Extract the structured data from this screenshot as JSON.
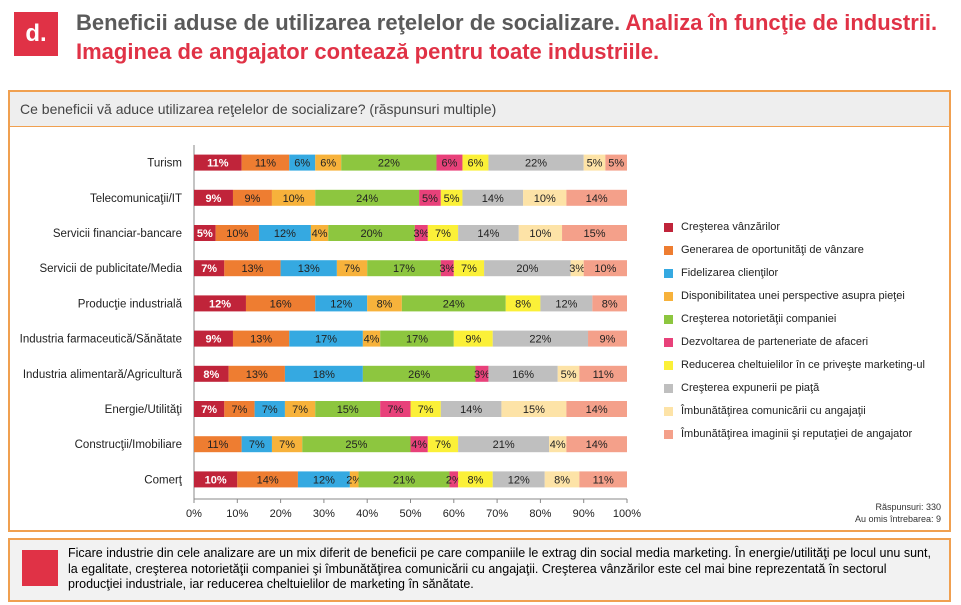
{
  "header": {
    "badge": "d.",
    "title_part1": "Beneficii aduse de utilizarea reţelelor de socializare.",
    "title_part2": "Analiza în funcţie de industrii. Imaginea de angajator contează pentru toate industriile."
  },
  "question": "Ce beneficii vă aduce utilizarea reţelelor de socializare? (răspunsuri multiple)",
  "notes": {
    "responses": "Răspunsuri: 330",
    "omitted": "Au omis întrebarea: 9"
  },
  "summary": "Ficare industrie din cele analizare are un mix diferit de beneficii pe care companiile le extrag din social media marketing. În energie/utilităţi pe locul unu sunt, la egalitate, creşterea notorietăţii companiei şi îmbunătăţirea comunicării cu angajaţii. Creşterea vânzărilor este cel mai bine reprezentată în sectorul producţiei industriale, iar reducerea cheltuielilor de marketing în sănătate.",
  "chart_data": {
    "type": "bar",
    "orientation": "horizontal-stacked-100",
    "categories": [
      "Turism",
      "Telecomunicaţii/IT",
      "Servicii financiar-bancare",
      "Servicii de publicitate/Media",
      "Producţie industrială",
      "Industria farmaceutică/Sănătate",
      "Industria alimentară/Agricultură",
      "Energie/Utilităţi",
      "Construcţii/Imobiliare",
      "Comerţ"
    ],
    "series": [
      {
        "name": "Creşterea vânzărilor",
        "color": "#c0243a",
        "values": [
          11,
          9,
          5,
          7,
          12,
          9,
          8,
          7,
          0,
          10
        ]
      },
      {
        "name": "Generarea de oportunităţi de vânzare",
        "color": "#ee7d31",
        "values": [
          11,
          9,
          10,
          13,
          16,
          13,
          13,
          7,
          11,
          14
        ]
      },
      {
        "name": "Fidelizarea clienţilor",
        "color": "#35a9e1",
        "values": [
          6,
          0,
          12,
          13,
          12,
          17,
          18,
          7,
          7,
          12
        ]
      },
      {
        "name": "Disponibilitatea unei perspective asupra pieţei",
        "color": "#f7b23b",
        "values": [
          6,
          10,
          4,
          7,
          8,
          4,
          0,
          7,
          7,
          2
        ]
      },
      {
        "name": "Creşterea notorietăţii companiei",
        "color": "#8dc63f",
        "values": [
          22,
          24,
          20,
          17,
          24,
          17,
          26,
          15,
          25,
          21
        ]
      },
      {
        "name": "Dezvoltarea de parteneriate de afaceri",
        "color": "#e8417a",
        "values": [
          6,
          5,
          3,
          3,
          0,
          0,
          3,
          7,
          4,
          2
        ]
      },
      {
        "name": "Reducerea cheltuielilor în ce priveşte marketing-ul",
        "color": "#fbf038",
        "values": [
          6,
          5,
          7,
          7,
          8,
          9,
          0,
          7,
          7,
          8
        ]
      },
      {
        "name": "Creşterea expunerii pe piaţă",
        "color": "#bfbfbf",
        "values": [
          22,
          14,
          14,
          20,
          12,
          22,
          16,
          14,
          21,
          12
        ]
      },
      {
        "name": "Îmbunătăţirea comunicării cu angajaţii",
        "color": "#fde3a7",
        "values": [
          5,
          10,
          10,
          3,
          0,
          0,
          5,
          15,
          4,
          8
        ]
      },
      {
        "name": "Îmbunătăţirea imaginii şi reputaţiei de angajator",
        "color": "#f4a08a",
        "values": [
          5,
          14,
          15,
          10,
          8,
          9,
          11,
          14,
          14,
          11
        ]
      }
    ],
    "xlim": [
      0,
      100
    ],
    "xticks": [
      "0%",
      "10%",
      "20%",
      "30%",
      "40%",
      "50%",
      "60%",
      "70%",
      "80%",
      "90%",
      "100%"
    ],
    "legend_position": "right"
  }
}
